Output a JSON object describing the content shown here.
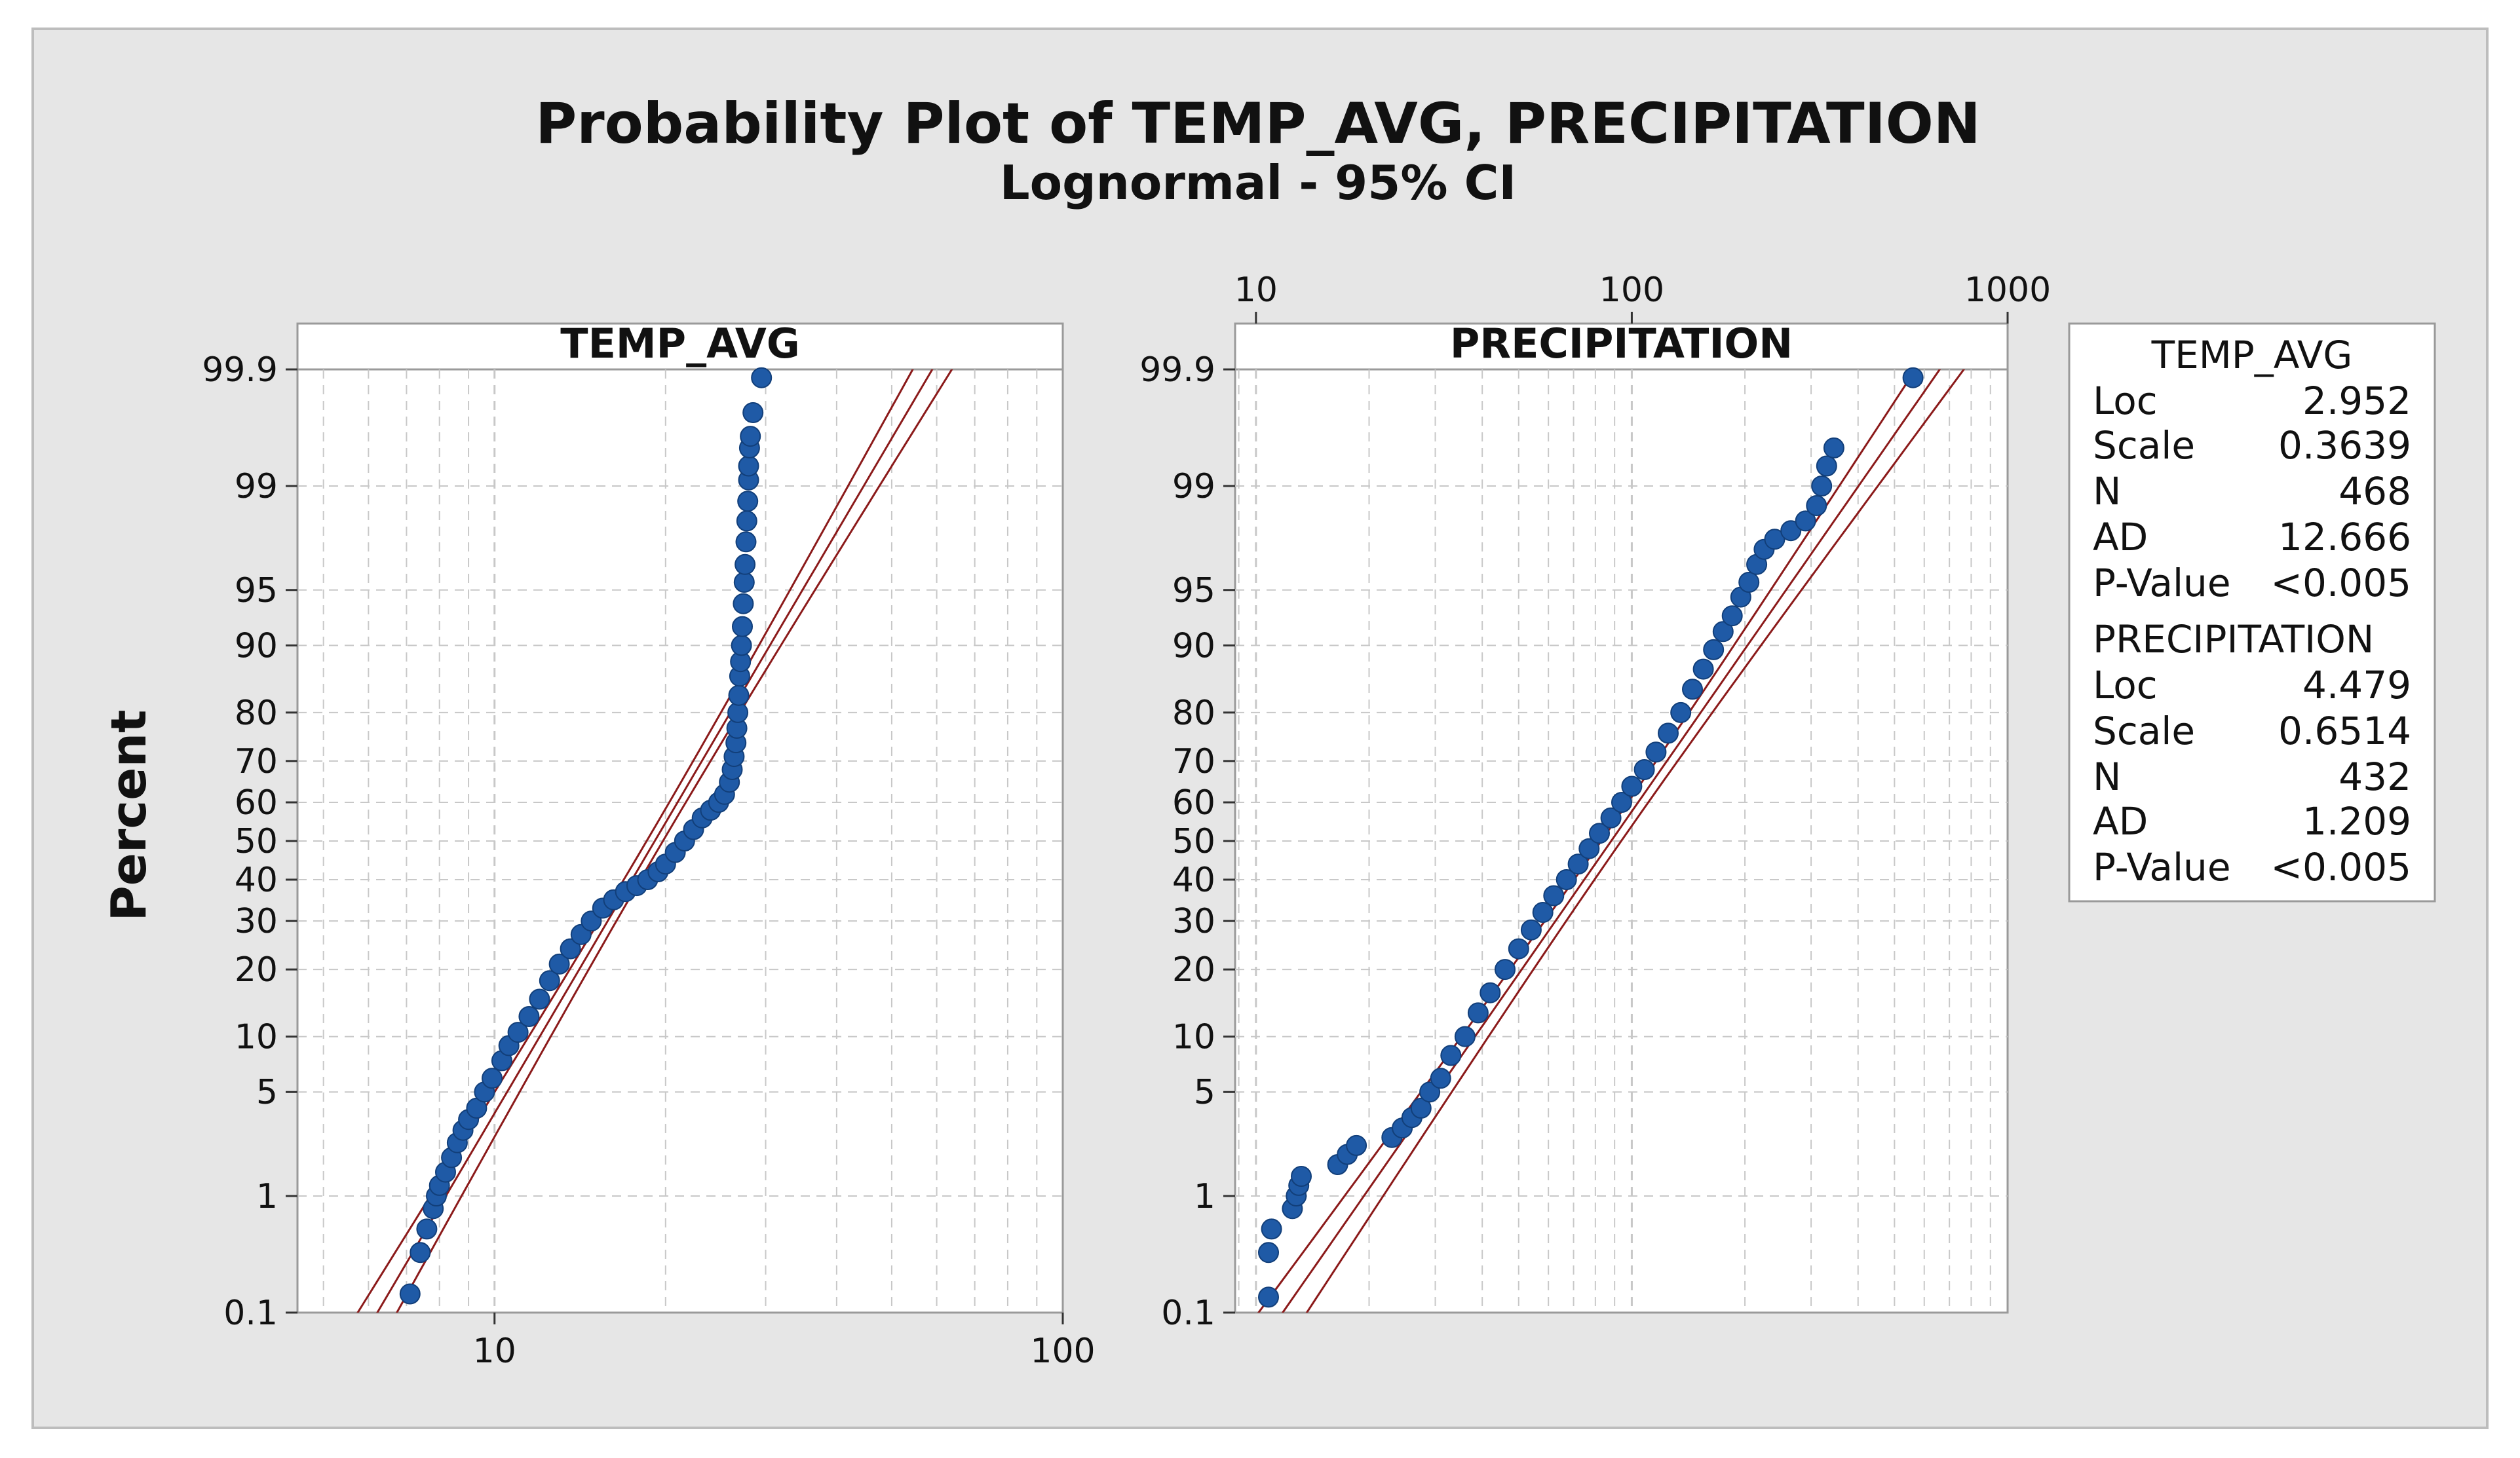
{
  "chart_data": {
    "type": "scatter",
    "title": "Probability Plot of TEMP_AVG, PRECIPITATION",
    "subtitle": "Lognormal - 95% CI",
    "ylabel": "Percent",
    "percent_ticks": [
      "99.9",
      "99",
      "95",
      "90",
      "80",
      "70",
      "60",
      "50",
      "40",
      "30",
      "20",
      "10",
      "5",
      "1",
      "0.1"
    ],
    "percent_values": [
      99.9,
      99,
      95,
      90,
      80,
      70,
      60,
      50,
      40,
      30,
      20,
      10,
      5,
      1,
      0.1
    ],
    "colors": {
      "points": "#1f5aa6",
      "fit": "#8b1a1a",
      "background": "#e6e6e6",
      "grid": "#c8c8c8"
    },
    "panels": [
      {
        "name": "TEMP_AVG",
        "x_scale": "log",
        "xlim": [
          4.5,
          100
        ],
        "x_ticks": [
          {
            "label": "10",
            "value": 10
          },
          {
            "label": "100",
            "value": 100
          }
        ],
        "x_tick_position": "bottom",
        "loc": 2.952,
        "scale": 0.3639,
        "n": 468,
        "points": [
          [
            7.1,
            0.15
          ],
          [
            7.4,
            0.35
          ],
          [
            7.6,
            0.55
          ],
          [
            7.8,
            0.8
          ],
          [
            7.9,
            1.0
          ],
          [
            8.0,
            1.2
          ],
          [
            8.2,
            1.5
          ],
          [
            8.4,
            1.9
          ],
          [
            8.6,
            2.4
          ],
          [
            8.8,
            2.9
          ],
          [
            9.0,
            3.4
          ],
          [
            9.3,
            4.0
          ],
          [
            9.6,
            5.0
          ],
          [
            9.9,
            6.0
          ],
          [
            10.3,
            7.5
          ],
          [
            10.6,
            9.0
          ],
          [
            11.0,
            10.5
          ],
          [
            11.5,
            12.5
          ],
          [
            12.0,
            15.0
          ],
          [
            12.5,
            18.0
          ],
          [
            13.0,
            21.0
          ],
          [
            13.6,
            24.0
          ],
          [
            14.2,
            27.0
          ],
          [
            14.8,
            30.0
          ],
          [
            15.5,
            33.0
          ],
          [
            16.2,
            35.0
          ],
          [
            17.0,
            37.0
          ],
          [
            17.8,
            38.5
          ],
          [
            18.6,
            40.0
          ],
          [
            19.4,
            42.0
          ],
          [
            20.0,
            44.0
          ],
          [
            20.8,
            47.0
          ],
          [
            21.6,
            50.0
          ],
          [
            22.4,
            53.0
          ],
          [
            23.2,
            56.0
          ],
          [
            24.0,
            58.0
          ],
          [
            24.8,
            60.0
          ],
          [
            25.4,
            62.0
          ],
          [
            25.9,
            65.0
          ],
          [
            26.2,
            68.0
          ],
          [
            26.4,
            71.0
          ],
          [
            26.6,
            74.0
          ],
          [
            26.7,
            77.0
          ],
          [
            26.8,
            80.0
          ],
          [
            26.9,
            83.0
          ],
          [
            27.0,
            86.0
          ],
          [
            27.1,
            88.0
          ],
          [
            27.2,
            90.0
          ],
          [
            27.3,
            92.0
          ],
          [
            27.4,
            94.0
          ],
          [
            27.5,
            95.5
          ],
          [
            27.6,
            96.5
          ],
          [
            27.7,
            97.5
          ],
          [
            27.8,
            98.2
          ],
          [
            27.9,
            98.7
          ],
          [
            28.0,
            99.1
          ],
          [
            28.0,
            99.3
          ],
          [
            28.1,
            99.5
          ],
          [
            28.2,
            99.6
          ],
          [
            28.5,
            99.75
          ],
          [
            29.5,
            99.88
          ]
        ]
      },
      {
        "name": "PRECIPITATION",
        "x_scale": "log",
        "xlim": [
          8.8,
          1000
        ],
        "x_ticks": [
          {
            "label": "10",
            "value": 10
          },
          {
            "label": "100",
            "value": 100
          },
          {
            "label": "1000",
            "value": 1000
          }
        ],
        "x_tick_position": "top",
        "loc": 4.479,
        "scale": 0.6514,
        "n": 432,
        "points": [
          [
            10.8,
            0.14
          ],
          [
            10.8,
            0.35
          ],
          [
            11.0,
            0.55
          ],
          [
            12.5,
            0.8
          ],
          [
            12.8,
            1.0
          ],
          [
            13.0,
            1.2
          ],
          [
            13.2,
            1.4
          ],
          [
            16.5,
            1.7
          ],
          [
            17.5,
            2.0
          ],
          [
            18.5,
            2.3
          ],
          [
            23.0,
            2.6
          ],
          [
            24.5,
            3.0
          ],
          [
            26.0,
            3.5
          ],
          [
            27.5,
            4.0
          ],
          [
            29.0,
            5.0
          ],
          [
            31.0,
            6.0
          ],
          [
            33.0,
            8.0
          ],
          [
            36.0,
            10.0
          ],
          [
            39.0,
            13.0
          ],
          [
            42.0,
            16.0
          ],
          [
            46.0,
            20.0
          ],
          [
            50.0,
            24.0
          ],
          [
            54.0,
            28.0
          ],
          [
            58.0,
            32.0
          ],
          [
            62.0,
            36.0
          ],
          [
            67.0,
            40.0
          ],
          [
            72.0,
            44.0
          ],
          [
            77.0,
            48.0
          ],
          [
            82.0,
            52.0
          ],
          [
            88.0,
            56.0
          ],
          [
            94.0,
            60.0
          ],
          [
            100.0,
            64.0
          ],
          [
            108.0,
            68.0
          ],
          [
            116.0,
            72.0
          ],
          [
            125.0,
            76.0
          ],
          [
            135.0,
            80.0
          ],
          [
            145.0,
            84.0
          ],
          [
            155.0,
            87.0
          ],
          [
            165.0,
            89.5
          ],
          [
            175.0,
            91.5
          ],
          [
            185.0,
            93.0
          ],
          [
            195.0,
            94.5
          ],
          [
            205.0,
            95.5
          ],
          [
            215.0,
            96.5
          ],
          [
            225.0,
            97.2
          ],
          [
            240.0,
            97.6
          ],
          [
            265.0,
            97.9
          ],
          [
            290.0,
            98.2
          ],
          [
            310.0,
            98.6
          ],
          [
            320.0,
            99.0
          ],
          [
            330.0,
            99.3
          ],
          [
            345.0,
            99.5
          ],
          [
            560.0,
            99.88
          ]
        ]
      }
    ],
    "legend": {
      "position": "right",
      "blocks": [
        {
          "header": "TEMP_AVG",
          "rows": [
            {
              "key": "Loc",
              "value": "2.952"
            },
            {
              "key": "Scale",
              "value": "0.3639"
            },
            {
              "key": "N",
              "value": "468"
            },
            {
              "key": "AD",
              "value": "12.666"
            },
            {
              "key": "P-Value",
              "value": "<0.005"
            }
          ]
        },
        {
          "header": "PRECIPITATION",
          "rows": [
            {
              "key": "Loc",
              "value": "4.479"
            },
            {
              "key": "Scale",
              "value": "0.6514"
            },
            {
              "key": "N",
              "value": "432"
            },
            {
              "key": "AD",
              "value": "1.209"
            },
            {
              "key": "P-Value",
              "value": "<0.005"
            }
          ]
        }
      ]
    }
  }
}
